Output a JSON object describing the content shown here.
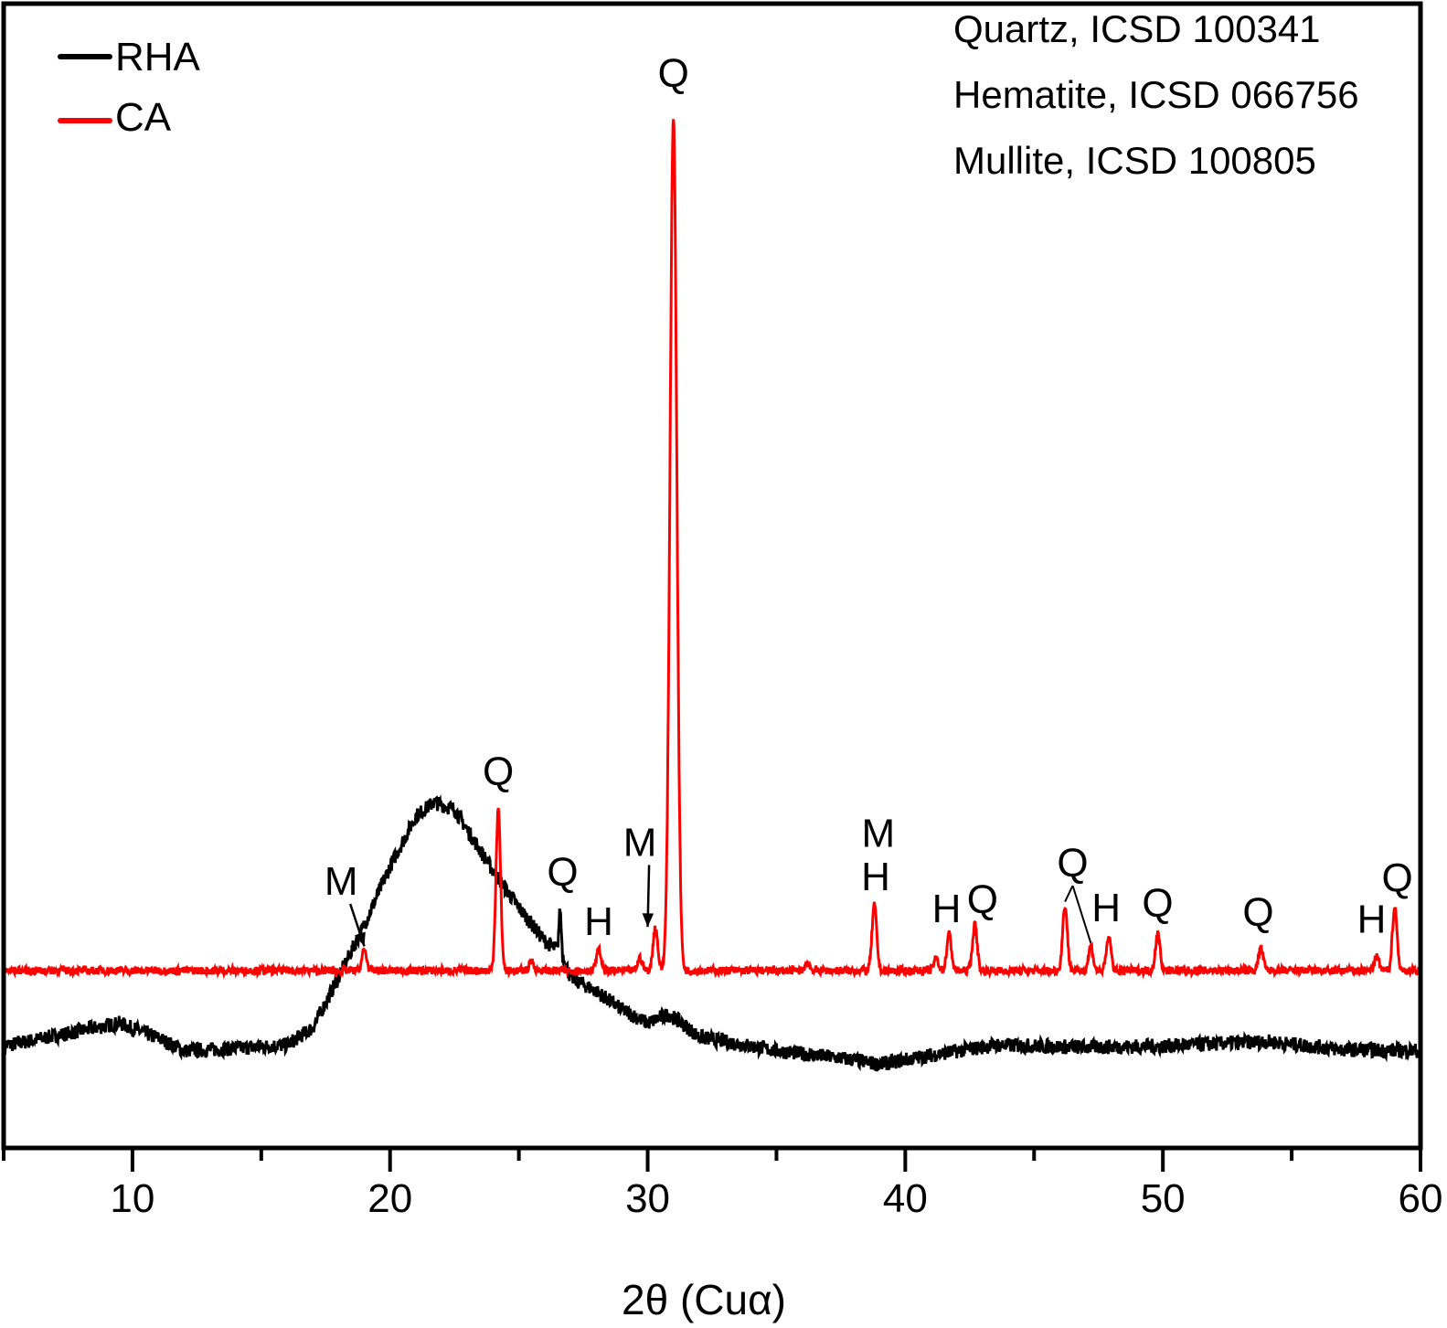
{
  "chart_data": {
    "type": "line",
    "title": "",
    "xlabel": "2θ (Cuα)",
    "ylabel": "",
    "xlim": [
      5,
      60
    ],
    "ylim": [
      0,
      100
    ],
    "xticks": [
      10,
      20,
      30,
      40,
      50,
      60
    ],
    "xminor_ticks": [
      15,
      25,
      35,
      45,
      55
    ],
    "y_axis_labels_shown": false,
    "grid": false,
    "legend_placement": "top-left",
    "colors": {
      "RHA": "#000000",
      "CA": "#ff0000",
      "axis": "#000000"
    },
    "series": [
      {
        "name": "RHA",
        "color": "#000000",
        "points": [
          [
            5,
            8.9
          ],
          [
            7,
            9.8
          ],
          [
            9.5,
            10.9
          ],
          [
            11,
            9.6
          ],
          [
            12,
            8.5
          ],
          [
            14,
            8.7
          ],
          [
            16,
            9.0
          ],
          [
            17,
            10.5
          ],
          [
            18,
            14.9
          ],
          [
            19,
            19.5
          ],
          [
            20,
            24.6
          ],
          [
            21,
            29.0
          ],
          [
            21.7,
            30.2
          ],
          [
            22.5,
            29.6
          ],
          [
            23,
            27.8
          ],
          [
            24,
            24.2
          ],
          [
            25,
            21.0
          ],
          [
            26,
            18.1
          ],
          [
            26.5,
            17.3
          ],
          [
            26.6,
            21.1
          ],
          [
            26.7,
            16.8
          ],
          [
            27,
            14.9
          ],
          [
            28,
            13.7
          ],
          [
            29,
            12.1
          ],
          [
            30,
            10.9
          ],
          [
            30.8,
            11.7
          ],
          [
            31.5,
            10.6
          ],
          [
            32,
            9.7
          ],
          [
            35,
            8.5
          ],
          [
            38,
            7.7
          ],
          [
            39,
            7.3
          ],
          [
            41,
            8.1
          ],
          [
            43.5,
            9.0
          ],
          [
            47,
            8.8
          ],
          [
            50,
            8.9
          ],
          [
            54,
            9.3
          ],
          [
            57,
            8.6
          ],
          [
            60,
            8.5
          ]
        ]
      },
      {
        "name": "CA",
        "color": "#ff0000",
        "baseline": 15.5,
        "peaks": [
          {
            "two_theta": 19.0,
            "intensity": 17.3
          },
          {
            "two_theta": 24.2,
            "intensity": 29.6
          },
          {
            "two_theta": 25.5,
            "intensity": 16.3
          },
          {
            "two_theta": 28.1,
            "intensity": 17.3
          },
          {
            "two_theta": 29.7,
            "intensity": 16.6
          },
          {
            "two_theta": 30.3,
            "intensity": 19.3
          },
          {
            "two_theta": 31.0,
            "intensity": 90.2
          },
          {
            "two_theta": 36.2,
            "intensity": 16.2
          },
          {
            "two_theta": 38.8,
            "intensity": 21.2
          },
          {
            "two_theta": 41.2,
            "intensity": 16.6
          },
          {
            "two_theta": 41.7,
            "intensity": 18.7
          },
          {
            "two_theta": 42.7,
            "intensity": 19.5
          },
          {
            "two_theta": 46.2,
            "intensity": 21.2
          },
          {
            "two_theta": 47.2,
            "intensity": 17.6
          },
          {
            "two_theta": 47.9,
            "intensity": 18.4
          },
          {
            "two_theta": 49.8,
            "intensity": 18.7
          },
          {
            "two_theta": 53.8,
            "intensity": 17.5
          },
          {
            "two_theta": 58.3,
            "intensity": 16.7
          },
          {
            "two_theta": 59.0,
            "intensity": 21.1
          }
        ]
      }
    ],
    "phase_legend": [
      "Quartz, ICSD 100341",
      "Hematite, ICSD 066756",
      "Mullite, ICSD 100805"
    ],
    "annotations": [
      {
        "text": "Q",
        "x": 31.0,
        "y": 94.0
      },
      {
        "text": "Q",
        "x": 24.2,
        "y": 33.0
      },
      {
        "text": "M",
        "x": 18.1,
        "y": 23.4,
        "arrow_to": [
          19.0,
          17.3
        ]
      },
      {
        "text": "Q",
        "x": 26.7,
        "y": 24.2
      },
      {
        "text": "H",
        "x": 28.1,
        "y": 19.9
      },
      {
        "text": "M",
        "x": 29.7,
        "y": 26.8,
        "arrow_to": [
          30.0,
          19.0
        ]
      },
      {
        "text": "M",
        "x": 38.95,
        "y": 27.6
      },
      {
        "text": "H",
        "x": 38.85,
        "y": 23.8
      },
      {
        "text": "H",
        "x": 41.6,
        "y": 21.0
      },
      {
        "text": "Q",
        "x": 43.0,
        "y": 21.8
      },
      {
        "text": "Q",
        "x": 46.5,
        "y": 25.0,
        "lines_to": [
          [
            46.2,
            21.2
          ],
          [
            47.2,
            17.6
          ]
        ]
      },
      {
        "text": "H",
        "x": 47.8,
        "y": 21.1
      },
      {
        "text": "Q",
        "x": 49.8,
        "y": 21.5
      },
      {
        "text": "Q",
        "x": 53.7,
        "y": 20.7
      },
      {
        "text": "H",
        "x": 58.1,
        "y": 20.1
      },
      {
        "text": "Q",
        "x": 59.1,
        "y": 23.7
      }
    ]
  }
}
